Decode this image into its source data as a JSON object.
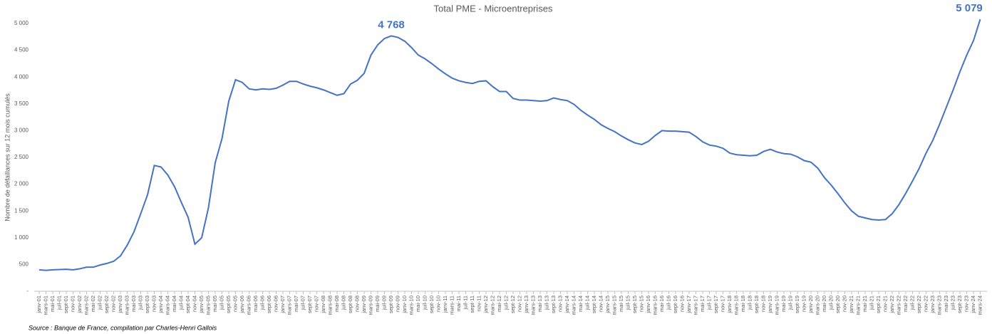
{
  "chart_data": {
    "type": "line",
    "title": "Total PME - Microentreprises",
    "y_label": "Nombre de défaillances sur 12 mois cumulés",
    "source": "Source : Banque de France, compilation par Charles-Henri Gallois",
    "categories": [
      "janv-01",
      "mars-01",
      "mai-01",
      "juil-01",
      "sept-01",
      "nov-01",
      "janv-02",
      "mars-02",
      "mai-02",
      "juil-02",
      "sept-02",
      "nov-02",
      "janv-03",
      "mars-03",
      "mai-03",
      "juil-03",
      "sept-03",
      "nov-03",
      "janv-04",
      "mars-04",
      "mai-04",
      "juil-04",
      "sept-04",
      "nov-04",
      "janv-05",
      "mars-05",
      "mai-05",
      "juil-05",
      "sept-05",
      "nov-05",
      "janv-06",
      "mars-06",
      "mai-06",
      "juil-06",
      "sept-06",
      "nov-06",
      "janv-07",
      "mars-07",
      "mai-07",
      "juil-07",
      "sept-07",
      "nov-07",
      "janv-08",
      "mars-08",
      "mai-08",
      "juil-08",
      "sept-08",
      "nov-08",
      "janv-09",
      "mars-09",
      "mai-09",
      "juil-09",
      "sept-09",
      "nov-09",
      "janv-10",
      "mars-10",
      "mai-10",
      "juil-10",
      "sept-10",
      "nov-10",
      "janv-11",
      "mars-11",
      "mai-11",
      "juil-11",
      "sept-11",
      "nov-11",
      "janv-12",
      "mars-12",
      "mai-12",
      "juil-12",
      "sept-12",
      "nov-12",
      "janv-13",
      "mars-13",
      "mai-13",
      "juil-13",
      "sept-13",
      "nov-13",
      "janv-14",
      "mars-14",
      "mai-14",
      "juil-14",
      "sept-14",
      "nov-14",
      "janv-15",
      "mars-15",
      "mai-15",
      "juil-15",
      "sept-15",
      "nov-15",
      "janv-16",
      "mars-16",
      "mai-16",
      "juil-16",
      "sept-16",
      "nov-16",
      "janv-17",
      "mars-17",
      "mai-17",
      "juil-17",
      "sept-17",
      "nov-17",
      "janv-18",
      "mars-18",
      "mai-18",
      "juil-18",
      "sept-18",
      "nov-18",
      "janv-19",
      "mars-19",
      "mai-19",
      "juil-19",
      "sept-19",
      "nov-19",
      "janv-20",
      "mars-20",
      "mai-20",
      "juil-20",
      "sept-20",
      "nov-20",
      "janv-21",
      "mars-21",
      "mai-21",
      "juil-21",
      "sept-21",
      "nov-21",
      "janv-22",
      "mars-22",
      "mai-22",
      "juil-22",
      "sept-22",
      "nov-22",
      "janv-23",
      "mars-23",
      "mai-23",
      "juil-23",
      "sept-23",
      "nov-23",
      "janv-24",
      "mars-24"
    ],
    "series": [
      {
        "color": "#4472c4",
        "values": [
          400,
          390,
          400,
          405,
          410,
          400,
          420,
          450,
          450,
          490,
          520,
          560,
          660,
          860,
          1110,
          1450,
          1800,
          2350,
          2320,
          2170,
          1950,
          1660,
          1380,
          880,
          1000,
          1560,
          2400,
          2850,
          3550,
          3950,
          3900,
          3780,
          3760,
          3780,
          3770,
          3790,
          3850,
          3920,
          3920,
          3870,
          3830,
          3800,
          3760,
          3710,
          3660,
          3690,
          3870,
          3940,
          4070,
          4410,
          4600,
          4720,
          4768,
          4740,
          4670,
          4550,
          4410,
          4340,
          4250,
          4150,
          4060,
          3980,
          3930,
          3900,
          3880,
          3920,
          3930,
          3820,
          3730,
          3730,
          3600,
          3570,
          3570,
          3560,
          3550,
          3560,
          3610,
          3580,
          3560,
          3490,
          3380,
          3290,
          3210,
          3110,
          3040,
          2980,
          2900,
          2830,
          2770,
          2740,
          2800,
          2910,
          3000,
          2990,
          2990,
          2980,
          2970,
          2890,
          2790,
          2730,
          2710,
          2670,
          2580,
          2550,
          2540,
          2530,
          2540,
          2610,
          2650,
          2600,
          2570,
          2560,
          2510,
          2440,
          2410,
          2300,
          2120,
          1980,
          1820,
          1650,
          1500,
          1400,
          1370,
          1340,
          1330,
          1340,
          1450,
          1620,
          1830,
          2060,
          2300,
          2580,
          2820,
          3120,
          3440,
          3760,
          4100,
          4410,
          4680,
          5079
        ],
        "value_labels": [
          null,
          null,
          null,
          null,
          null,
          null,
          null,
          null,
          null,
          null,
          null,
          null,
          null,
          null,
          null,
          null,
          null,
          null,
          null,
          null,
          null,
          null,
          null,
          null,
          null,
          null,
          null,
          null,
          null,
          null,
          null,
          null,
          null,
          null,
          null,
          null,
          null,
          null,
          null,
          null,
          null,
          null,
          null,
          null,
          null,
          null,
          null,
          null,
          null,
          null,
          null,
          null,
          "4 768",
          null,
          null,
          null,
          null,
          null,
          null,
          null,
          null,
          null,
          null,
          null,
          null,
          null,
          null,
          null,
          null,
          null,
          null,
          null,
          null,
          null,
          null,
          null,
          null,
          null,
          null,
          null,
          null,
          null,
          null,
          null,
          null,
          null,
          null,
          null,
          null,
          null,
          null,
          null,
          null,
          null,
          null,
          null,
          null,
          null,
          null,
          null,
          null,
          null,
          null,
          null,
          null,
          null,
          null,
          null,
          null,
          null,
          null,
          null,
          null,
          null,
          null,
          null,
          null,
          null,
          null,
          null,
          null,
          null,
          null,
          null,
          null,
          null,
          null,
          null,
          null,
          null,
          null,
          null,
          null,
          null,
          null,
          null,
          null,
          null,
          null,
          "5 079"
        ]
      }
    ],
    "ylim": [
      0,
      5000
    ],
    "yticks": [
      {
        "value": 0,
        "label": "-"
      },
      500,
      {
        "value": 1000,
        "label": "1 000"
      },
      {
        "value": 1500,
        "label": "1 500"
      },
      {
        "value": 2000,
        "label": "2 000"
      },
      {
        "value": 2500,
        "label": "2 500"
      },
      {
        "value": 3000,
        "label": "3 000"
      },
      {
        "value": 3500,
        "label": "3 500"
      },
      {
        "value": 4000,
        "label": "4 000"
      },
      {
        "value": 4500,
        "label": "4 500"
      },
      {
        "value": 5000,
        "label": "5 000"
      }
    ],
    "grid": false
  }
}
